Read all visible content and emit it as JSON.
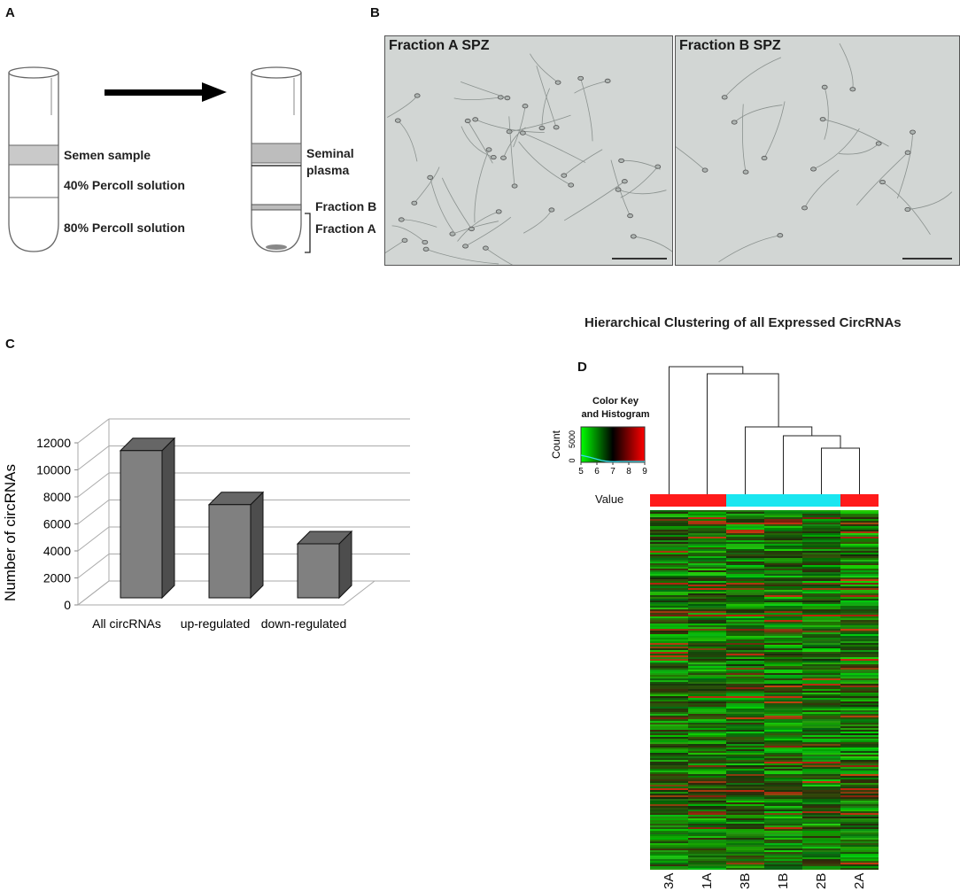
{
  "panels": {
    "a": {
      "letter": "A",
      "labels": {
        "semen_sample": "Semen sample",
        "percoll_40": "40% Percoll solution",
        "percoll_80": "80% Percoll solution",
        "seminal_plasma_1": "Seminal",
        "seminal_plasma_2": "plasma",
        "fraction_b": "Fraction B",
        "fraction_a": "Fraction A"
      }
    },
    "b": {
      "letter": "B",
      "left_title": "Fraction A SPZ",
      "right_title": "Fraction B SPZ"
    },
    "c": {
      "letter": "C"
    },
    "d": {
      "letter": "D",
      "title": "Hierarchical Clustering of all Expressed CircRNAs",
      "color_key_title_1": "Color Key",
      "color_key_title_2": "and Histogram",
      "count_label": "Count",
      "value_label": "Value",
      "key_ticks": [
        "5",
        "6",
        "7",
        "8",
        "9"
      ],
      "count_ticks": [
        "0",
        "5000"
      ],
      "columns": [
        "3A",
        "1A",
        "3B",
        "1B",
        "2B",
        "2A"
      ],
      "column_group_colors": [
        "#ff1a1a",
        "#ff1a1a",
        "#1ae6f0",
        "#1ae6f0",
        "#1ae6f0",
        "#ff1a1a"
      ]
    }
  },
  "chart_data": {
    "type": "bar",
    "categories": [
      "All circRNAs",
      "up-regulated",
      "down-regulated"
    ],
    "values": [
      10900,
      6900,
      4000
    ],
    "ylabel": "Number of circRNAs",
    "yticks": [
      0,
      2000,
      4000,
      6000,
      8000,
      10000,
      12000
    ],
    "ylim": [
      0,
      12000
    ],
    "bar_color": "#808080"
  }
}
